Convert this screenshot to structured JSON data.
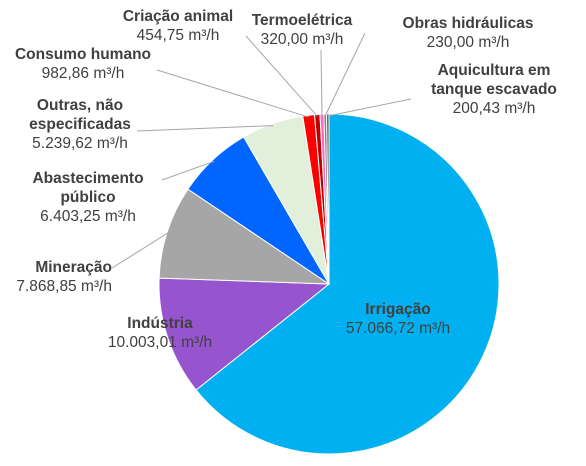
{
  "chart_data": {
    "type": "pie",
    "title": "",
    "start_angle_deg": 0,
    "direction": "clockwise",
    "unit": "m³/h",
    "slices": [
      {
        "name": "Irrigação",
        "value": 57066.72,
        "value_label": "57.066,72 m³/h",
        "color": "#00B0F0"
      },
      {
        "name": "Indústria",
        "value": 10003.01,
        "value_label": "10.003,01 m³/h",
        "color": "#9655CF"
      },
      {
        "name": "Mineração",
        "value": 7868.85,
        "value_label": "7.868,85 m³/h",
        "color": "#A6A6A6"
      },
      {
        "name": "Abastecimento público",
        "value": 6403.25,
        "value_label": "6.403,25 m³/h",
        "color": "#0066FF"
      },
      {
        "name": "Outras, não especificadas",
        "value": 5239.62,
        "value_label": "5.239,62 m³/h",
        "color": "#E2EFDA"
      },
      {
        "name": "Consumo humano",
        "value": 982.86,
        "value_label": "982,86 m³/h",
        "color": "#FF0000"
      },
      {
        "name": "Criação animal",
        "value": 454.75,
        "value_label": "454,75 m³/h",
        "color": "#C00000"
      },
      {
        "name": "Termoelétrica",
        "value": 320.0,
        "value_label": "320,00 m³/h",
        "color": "#FF66CC"
      },
      {
        "name": "Obras hidráulicas",
        "value": 230.0,
        "value_label": "230,00 m³/h",
        "color": "#7F7F7F"
      },
      {
        "name": "Aquicultura em tanque escavado",
        "value": 200.43,
        "value_label": "200,43 m³/h",
        "color": "#4D4D4D"
      }
    ]
  }
}
